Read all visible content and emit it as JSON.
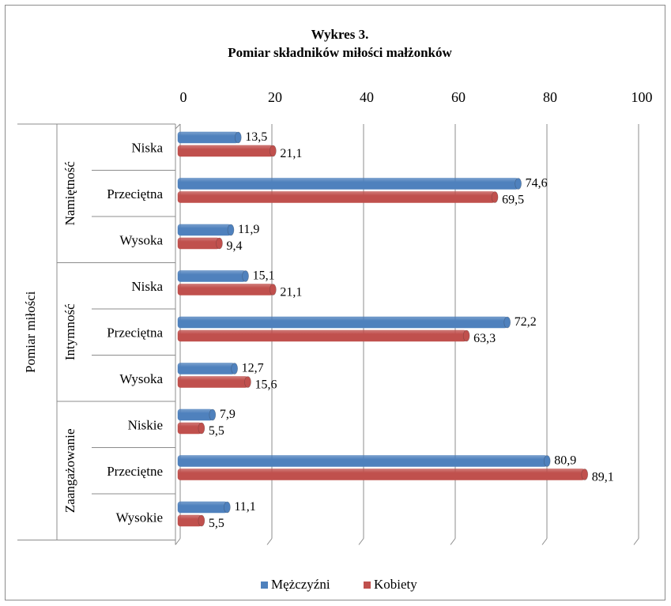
{
  "chart_data": {
    "type": "bar",
    "orientation": "horizontal",
    "title": [
      "Wykres 3.",
      "Pomiar składników miłości małżonków"
    ],
    "outer_group": "Pomiar miłości",
    "xlim": [
      0,
      100
    ],
    "x_ticks": [
      0,
      20,
      40,
      60,
      80,
      100
    ],
    "grid": true,
    "legend_position": "bottom",
    "groups": [
      {
        "name": "Namiętność",
        "categories": [
          "Niska",
          "Przeciętna",
          "Wysoka"
        ]
      },
      {
        "name": "Intymność",
        "categories": [
          "Niska",
          "Przeciętna",
          "Wysoka"
        ]
      },
      {
        "name": "Zaangażowanie",
        "categories": [
          "Niskie",
          "Przeciętne",
          "Wysokie"
        ]
      }
    ],
    "series": [
      {
        "name": "Mężczyźni",
        "color": "#4f81bd",
        "values": [
          13.5,
          74.6,
          11.9,
          15.1,
          72.2,
          12.7,
          7.9,
          80.9,
          11.1
        ],
        "labels": [
          "13,5",
          "74,6",
          "11,9",
          "15,1",
          "72,2",
          "12,7",
          "7,9",
          "80,9",
          "11,1"
        ]
      },
      {
        "name": "Kobiety",
        "color": "#c0504d",
        "values": [
          21.1,
          69.5,
          9.4,
          21.1,
          63.3,
          15.6,
          5.5,
          89.1,
          5.5
        ],
        "labels": [
          "21,1",
          "69,5",
          "9,4",
          "21,1",
          "63,3",
          "15,6",
          "5,5",
          "89,1",
          "5,5"
        ]
      }
    ]
  }
}
